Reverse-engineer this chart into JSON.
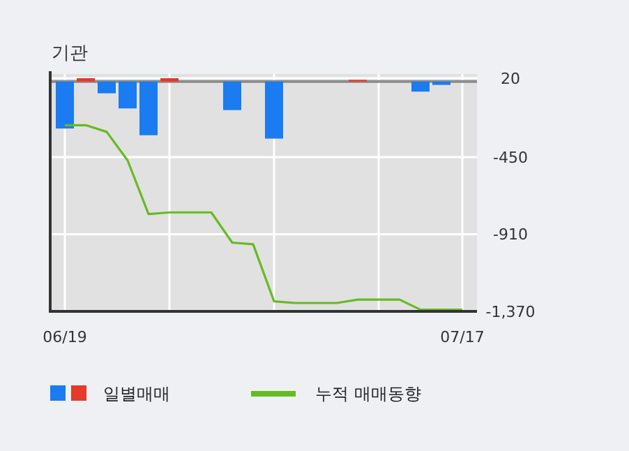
{
  "chart_data": {
    "type": "bar",
    "title": "기관",
    "categories": [
      "06/19",
      null,
      null,
      null,
      null,
      null,
      null,
      null,
      null,
      null,
      null,
      null,
      null,
      null,
      null,
      null,
      null,
      null,
      null,
      "07/17"
    ],
    "series": [
      {
        "name": "일별매매",
        "colors": [
          "#1a7cf0",
          "#e33a2a",
          "#1a7cf0",
          "#1a7cf0",
          "#1a7cf0",
          "#e33a2a",
          "#1a7cf0",
          "#1a7cf0",
          "#1a7cf0",
          "#1a7cf0",
          "#1a7cf0",
          "#1a7cf0",
          "#1a7cf0",
          "#1a7cf0",
          "#e33a2a",
          "#1a7cf0",
          "#1a7cf0",
          "#1a7cf0",
          "#1a7cf0",
          "#1a7cf0"
        ],
        "values": [
          -280,
          20,
          -70,
          -160,
          -320,
          20,
          0,
          0,
          -170,
          0,
          -340,
          0,
          0,
          0,
          10,
          0,
          0,
          -60,
          -20,
          0
        ]
      },
      {
        "name": "누적 매매동향",
        "type": "line",
        "color": "#66bb22",
        "values": [
          -260,
          -260,
          -300,
          -470,
          -790,
          -780,
          -780,
          -780,
          -960,
          -970,
          -1310,
          -1320,
          -1320,
          -1320,
          -1300,
          -1300,
          -1300,
          -1360,
          -1360,
          -1360
        ]
      }
    ],
    "ylim": [
      -1370,
      45
    ],
    "yticks": [
      20,
      -450,
      -910,
      {
        "value": -1370,
        "label": "-1,370"
      }
    ],
    "grid": true,
    "legend": "bottom"
  }
}
